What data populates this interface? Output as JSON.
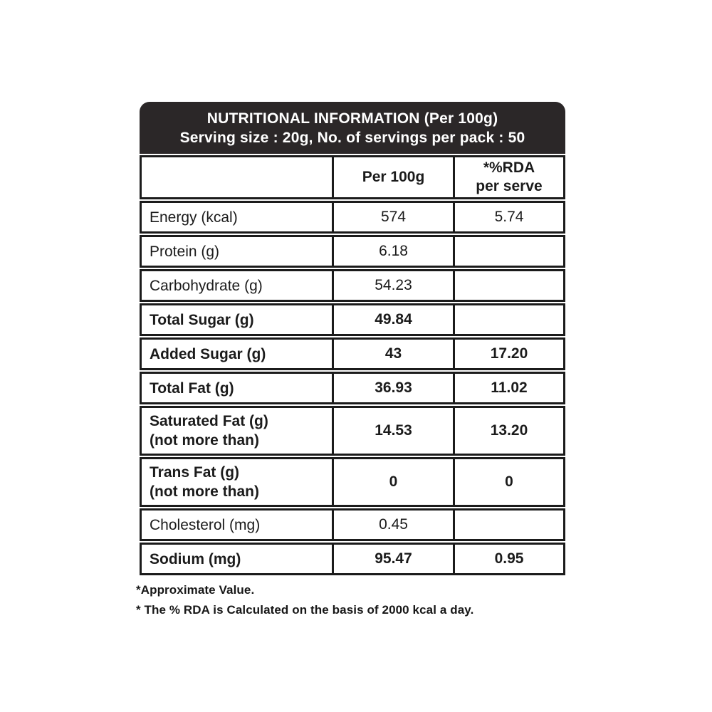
{
  "header": {
    "title": "NUTRITIONAL INFORMATION (Per 100g)",
    "subtitle": "Serving size : 20g, No. of servings per pack : 50"
  },
  "table": {
    "columns": {
      "nutrient": "",
      "per_100g": "Per 100g",
      "rda_line1": "*%RDA",
      "rda_line2": "per serve"
    },
    "rows": [
      {
        "label": "Energy (kcal)",
        "label2": "",
        "per_100g": "574",
        "rda_per_serve": "5.74",
        "bold": false
      },
      {
        "label": "Protein (g)",
        "label2": "",
        "per_100g": "6.18",
        "rda_per_serve": "",
        "bold": false
      },
      {
        "label": "Carbohydrate (g)",
        "label2": "",
        "per_100g": "54.23",
        "rda_per_serve": "",
        "bold": false
      },
      {
        "label": "Total Sugar (g)",
        "label2": "",
        "per_100g": "49.84",
        "rda_per_serve": "",
        "bold": true
      },
      {
        "label": "Added Sugar (g)",
        "label2": "",
        "per_100g": "43",
        "rda_per_serve": "17.20",
        "bold": true
      },
      {
        "label": "Total Fat (g)",
        "label2": "",
        "per_100g": "36.93",
        "rda_per_serve": "11.02",
        "bold": true
      },
      {
        "label": "Saturated Fat (g)",
        "label2": "(not more than)",
        "per_100g": "14.53",
        "rda_per_serve": "13.20",
        "bold": true
      },
      {
        "label": "Trans Fat (g)",
        "label2": "(not more than)",
        "per_100g": "0",
        "rda_per_serve": "0",
        "bold": true
      },
      {
        "label": "Cholesterol (mg)",
        "label2": "",
        "per_100g": "0.45",
        "rda_per_serve": "",
        "bold": false
      },
      {
        "label": "Sodium (mg)",
        "label2": "",
        "per_100g": "95.47",
        "rda_per_serve": "0.95",
        "bold": true
      }
    ]
  },
  "footnotes": [
    "*Approximate Value.",
    "* The % RDA is Calculated on the basis of 2000 kcal a day."
  ],
  "colors": {
    "header_bg": "#2b2728",
    "header_text": "#ffffff",
    "border": "#1b1b1b",
    "text": "#1b1b1b",
    "page_bg": "#ffffff"
  }
}
